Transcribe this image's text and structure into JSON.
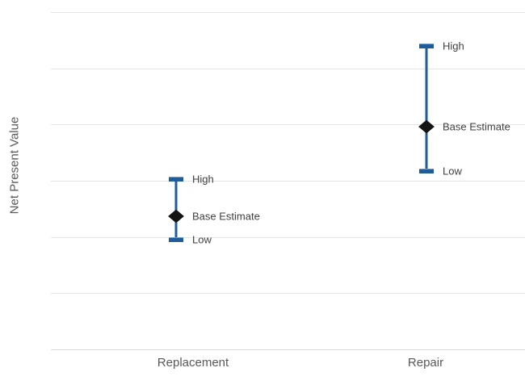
{
  "chart_data": {
    "type": "stock-high-low",
    "title": "",
    "xlabel": "",
    "ylabel": "Net Present Value",
    "categories": [
      "Replacement",
      "Repair"
    ],
    "series": [
      {
        "name": "High",
        "values": [
          3.03,
          5.4
        ]
      },
      {
        "name": "Base Estimate",
        "values": [
          2.37,
          3.96
        ]
      },
      {
        "name": "Low",
        "values": [
          1.95,
          3.17
        ]
      }
    ],
    "ylim": [
      0,
      6
    ],
    "gridline_step": 1,
    "y_tick_labels": "none",
    "x_tick_labels": [
      "Replacement",
      "Repair"
    ],
    "legend": "none",
    "grid": "horizontal",
    "point_label_position": "right",
    "notes": "Y axis has no numeric tick labels; values expressed in gridline units measured from the x-axis baseline.",
    "colors": {
      "range_bar": "#1f5c99",
      "marker": "#141414",
      "gridline": "#e5e5e5",
      "axis_line": "#d9d9d9",
      "point_label_text": "#3f3f3f",
      "category_text": "#595959",
      "background": "#ffffff"
    }
  }
}
